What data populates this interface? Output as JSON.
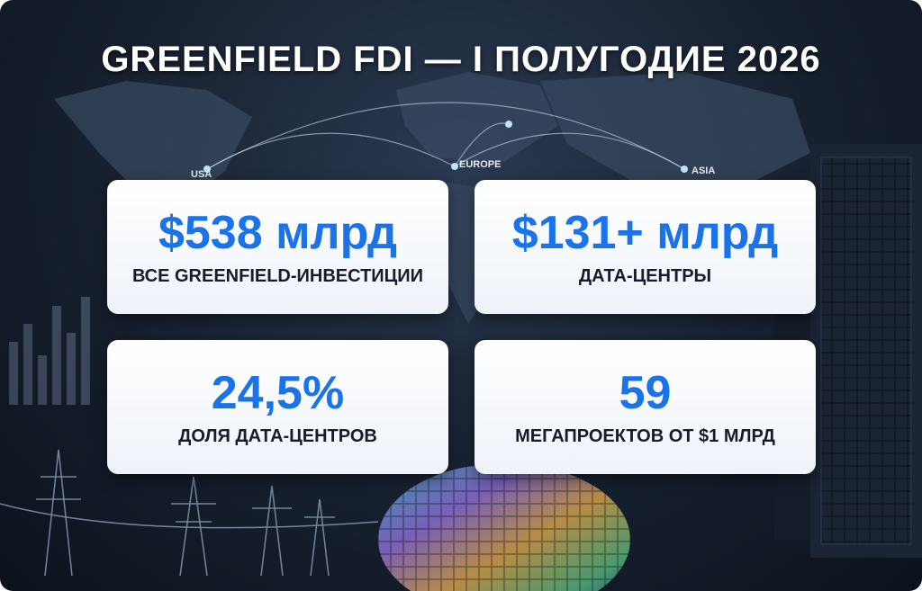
{
  "header": {
    "title": "GREENFIELD FDI — I ПОЛУГОДИЕ 2026"
  },
  "map_labels": [
    "USA",
    "EUROPE",
    "ASIA"
  ],
  "cards": [
    {
      "value": "$538 млрд",
      "label": "ВСЕ GREENFIELD-ИНВЕСТИЦИИ"
    },
    {
      "value": "$131+ млрд",
      "label": "ДАТА-ЦЕНТРЫ"
    },
    {
      "value": "24,5%",
      "label": "ДОЛЯ ДАТА-ЦЕНТРОВ"
    },
    {
      "value": "59",
      "label": "МЕГАПРОЕКТОВ ОТ $1 МЛРД"
    }
  ]
}
